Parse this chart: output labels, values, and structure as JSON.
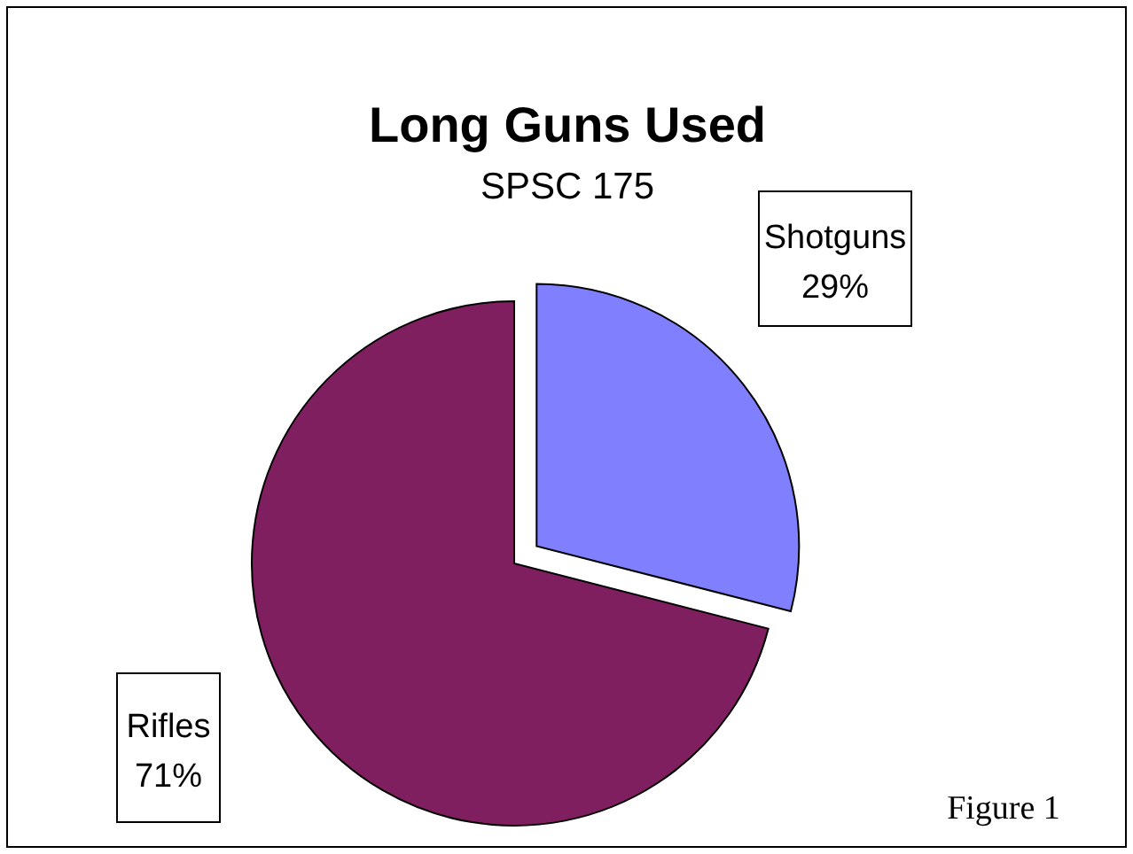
{
  "chart_data": {
    "type": "pie",
    "title": "Long Guns Used",
    "subtitle": "SPSC 175",
    "categories": [
      "Shotguns",
      "Rifles"
    ],
    "values": [
      29,
      71
    ],
    "colors": [
      "#8080ff",
      "#7f1f5f"
    ],
    "value_labels": [
      "29%",
      "71%"
    ],
    "annotations": [
      "Figure 1"
    ]
  }
}
